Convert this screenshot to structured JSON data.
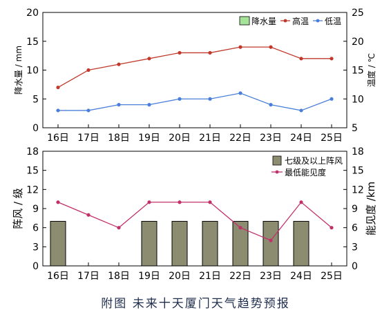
{
  "caption": "附图 未来十天厦门天气趋势预报",
  "chart_data": [
    {
      "type": "line",
      "categories": [
        "16日",
        "17日",
        "18日",
        "19日",
        "20日",
        "21日",
        "22日",
        "23日",
        "24日",
        "25日"
      ],
      "ylabel_left": "降水量 / mm",
      "ylabel_right": "温度 / ℃",
      "ylim_left": [
        0,
        20
      ],
      "yticks_left": [
        0,
        5,
        10,
        15,
        20
      ],
      "ylim_right": [
        5,
        25
      ],
      "yticks_right": [
        5,
        10,
        15,
        20,
        25
      ],
      "legend": [
        "降水量",
        "高温",
        "低温"
      ],
      "legend_position": "top-right",
      "series": [
        {
          "name": "降水量",
          "type": "bar",
          "axis": "left",
          "color": "#a6e39a",
          "values": [
            0,
            0,
            0,
            0,
            0,
            0,
            0,
            0,
            0,
            0
          ]
        },
        {
          "name": "高温",
          "type": "line",
          "axis": "right",
          "color": "#c0392b",
          "values": [
            12,
            15,
            16,
            17,
            18,
            18,
            19,
            19,
            17,
            17
          ]
        },
        {
          "name": "低温",
          "type": "line",
          "axis": "right",
          "color": "#4a7fd9",
          "values": [
            8,
            8,
            9,
            9,
            10,
            10,
            11,
            9,
            8,
            10
          ]
        }
      ]
    },
    {
      "type": "bar",
      "categories": [
        "16日",
        "17日",
        "18日",
        "19日",
        "20日",
        "21日",
        "22日",
        "23日",
        "24日",
        "25日"
      ],
      "ylabel_left": "阵风 / 级",
      "ylabel_right": "能见度 /km",
      "ylim_left": [
        0,
        18
      ],
      "yticks_left": [
        0,
        3,
        6,
        9,
        12,
        15,
        18
      ],
      "ylim_right": [
        0,
        18
      ],
      "yticks_right": [
        0,
        3,
        6,
        9,
        12,
        15,
        18
      ],
      "legend": [
        "七级及以上阵风",
        "最低能见度"
      ],
      "legend_position": "top-right",
      "series": [
        {
          "name": "七级及以上阵风",
          "type": "bar",
          "axis": "left",
          "color": "#8c8c70",
          "values": [
            7,
            0,
            0,
            7,
            7,
            7,
            7,
            7,
            7,
            0
          ]
        },
        {
          "name": "最低能见度",
          "type": "line",
          "axis": "right",
          "color": "#c2306a",
          "values": [
            10,
            8,
            6,
            10,
            10,
            10,
            6,
            4,
            10,
            6
          ]
        }
      ]
    }
  ]
}
